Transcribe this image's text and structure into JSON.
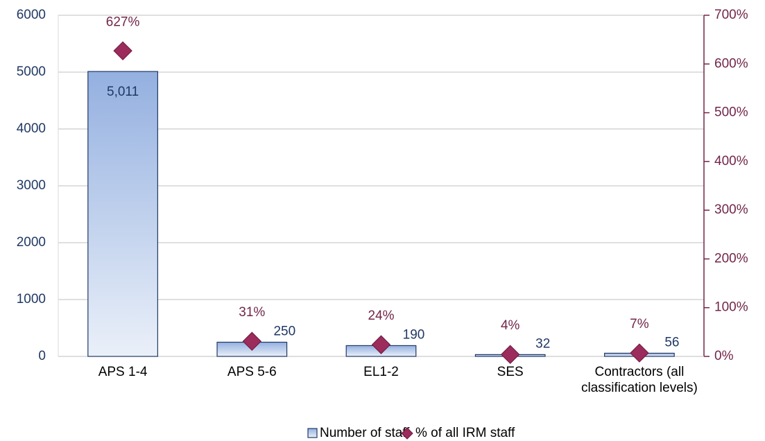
{
  "chart_data": {
    "type": "bar",
    "categories": [
      "APS 1-4",
      "APS 5-6",
      "EL1-2",
      "SES",
      "Contractors (all classification levels)"
    ],
    "series": [
      {
        "name": "Number of staff",
        "type": "bar",
        "color": "#a4bde6",
        "values": [
          5011,
          250,
          190,
          32,
          56
        ],
        "value_labels": [
          "5,011",
          "250",
          "190",
          "32",
          "56"
        ]
      },
      {
        "name": "% of all IRM staff",
        "type": "scatter",
        "axis": "y2",
        "color": "#9b2c5c",
        "values": [
          627,
          31,
          24,
          4,
          7
        ],
        "value_labels": [
          "627%",
          "31%",
          "24%",
          "4%",
          "7%"
        ]
      }
    ],
    "ylim": [
      0,
      6000
    ],
    "yticks": [
      0,
      1000,
      2000,
      3000,
      4000,
      5000,
      6000
    ],
    "y2lim": [
      0,
      700
    ],
    "y2ticks": [
      {
        "value": 0,
        "label": "0%"
      },
      {
        "value": 100,
        "label": "100%"
      },
      {
        "value": 200,
        "label": "200%"
      },
      {
        "value": 300,
        "label": "300%"
      },
      {
        "value": 400,
        "label": "400%"
      },
      {
        "value": 500,
        "label": "500%"
      },
      {
        "value": 600,
        "label": "600%"
      },
      {
        "value": 700,
        "label": "700%"
      }
    ],
    "grid": true,
    "legend": "bottom"
  }
}
